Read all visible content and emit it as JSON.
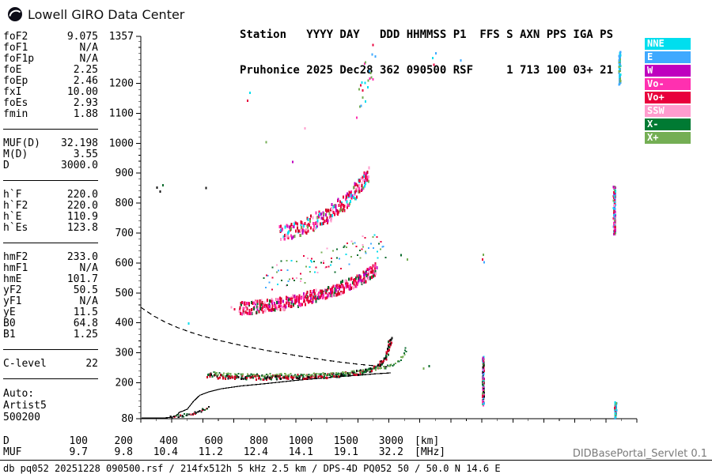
{
  "header": {
    "brand": "Lowell GIRO Data Center",
    "station_line1": "Station   YYYY DAY   DDD HHMMSS P1  FFS S AXN PPS IGA PS",
    "station_line2": "Pruhonice 2025 Dec28 362 090500 RSF     1 713 100 03+ 21"
  },
  "params": {
    "groups": [
      [
        {
          "label": "foF2",
          "value": "9.075"
        },
        {
          "label": "foF1",
          "value": "N/A"
        },
        {
          "label": "foF1p",
          "value": "N/A"
        },
        {
          "label": "foE",
          "value": "2.25"
        },
        {
          "label": "foEp",
          "value": "2.46"
        },
        {
          "label": "fxI",
          "value": "10.00"
        },
        {
          "label": "foEs",
          "value": "2.93"
        },
        {
          "label": "fmin",
          "value": "1.88"
        }
      ],
      [
        {
          "label": "MUF(D)",
          "value": "32.198"
        },
        {
          "label": "M(D)",
          "value": "3.55"
        },
        {
          "label": "D",
          "value": "3000.0"
        }
      ],
      [
        {
          "label": "h`F",
          "value": "220.0"
        },
        {
          "label": "h`F2",
          "value": "220.0"
        },
        {
          "label": "h`E",
          "value": "110.9"
        },
        {
          "label": "h`Es",
          "value": "123.8"
        }
      ],
      [
        {
          "label": "hmF2",
          "value": "233.0"
        },
        {
          "label": "hmF1",
          "value": "N/A"
        },
        {
          "label": "hmE",
          "value": "101.7"
        },
        {
          "label": "yF2",
          "value": "50.5"
        },
        {
          "label": "yF1",
          "value": "N/A"
        },
        {
          "label": "yE",
          "value": "11.5"
        },
        {
          "label": "B0",
          "value": "64.8"
        },
        {
          "label": "B1",
          "value": "1.25"
        }
      ]
    ],
    "c_level": {
      "label": "C-level",
      "value": "22"
    },
    "auto_lines": [
      "Auto:",
      "Artist5",
      "500200"
    ]
  },
  "legend": {
    "items": [
      {
        "label": "NNE",
        "color": "#00DEEE"
      },
      {
        "label": "E",
        "color": "#3FA9FF"
      },
      {
        "label": "W",
        "color": "#BF00BF"
      },
      {
        "label": "Vo-",
        "color": "#FF30B0"
      },
      {
        "label": "Vo+",
        "color": "#E8003C"
      },
      {
        "label": "SSW",
        "color": "#FF9CCE"
      },
      {
        "label": "X-",
        "color": "#007A33"
      },
      {
        "label": "X+",
        "color": "#74AE54"
      }
    ]
  },
  "chart_data": {
    "type": "scatter",
    "title": "Pruhonice ionogram 2025 Dec28 362 090500",
    "x_unit": "MHz",
    "y_unit": "km",
    "xlim": [
      1,
      17
    ],
    "ylim": [
      80,
      1357
    ],
    "xticks": [
      1,
      2,
      3,
      4,
      5,
      6,
      7,
      8,
      9,
      10,
      11,
      12,
      13,
      14,
      15,
      16,
      17
    ],
    "yticks": [
      80,
      200,
      300,
      400,
      500,
      600,
      700,
      800,
      900,
      1000,
      1100,
      1200,
      1357
    ],
    "grid": false,
    "curves": [
      {
        "name": "true-height-profile",
        "style": "solid",
        "color": "#000000",
        "points": [
          [
            1.02,
            83
          ],
          [
            1.8,
            83
          ],
          [
            2.0,
            85
          ],
          [
            2.12,
            89
          ],
          [
            2.2,
            96
          ],
          [
            2.25,
            102
          ],
          [
            2.32,
            104
          ],
          [
            2.5,
            112
          ],
          [
            2.7,
            138
          ],
          [
            2.9,
            158
          ],
          [
            3.2,
            170
          ],
          [
            3.6,
            180
          ],
          [
            4.2,
            189
          ],
          [
            5.0,
            197
          ],
          [
            6.0,
            208
          ],
          [
            7.0,
            217
          ],
          [
            8.0,
            225
          ],
          [
            8.6,
            230
          ],
          [
            9.07,
            233
          ]
        ]
      },
      {
        "name": "transmission-curve",
        "style": "dashed",
        "color": "#000000",
        "points": [
          [
            1.0,
            452
          ],
          [
            1.4,
            424
          ],
          [
            1.8,
            402
          ],
          [
            2.2,
            384
          ],
          [
            2.6,
            369
          ],
          [
            3.0,
            356
          ],
          [
            3.5,
            342
          ],
          [
            4.0,
            330
          ],
          [
            4.5,
            319
          ],
          [
            5.0,
            309
          ],
          [
            5.5,
            300
          ],
          [
            6.0,
            291
          ],
          [
            6.5,
            283
          ],
          [
            7.0,
            275
          ],
          [
            7.5,
            268
          ],
          [
            8.0,
            262
          ],
          [
            8.5,
            257
          ],
          [
            8.95,
            253
          ]
        ]
      }
    ],
    "scatter_series": [
      {
        "name": "f-trace-ordinary",
        "points": [
          [
            3.15,
            224
          ],
          [
            3.6,
            220
          ],
          [
            4.2,
            218
          ],
          [
            5.0,
            217
          ],
          [
            5.8,
            218
          ],
          [
            6.6,
            221
          ],
          [
            7.2,
            224
          ],
          [
            7.8,
            229
          ],
          [
            8.25,
            237
          ],
          [
            8.55,
            249
          ],
          [
            8.78,
            266
          ],
          [
            8.92,
            290
          ],
          [
            9.0,
            316
          ],
          [
            9.06,
            350
          ]
        ],
        "n": 270,
        "fjitter": 0.1,
        "hjitter": 14,
        "dot": [
          2,
          3
        ],
        "colors": [
          "#cc0022",
          "#cc0022",
          "#111111",
          "#0a6b2d",
          "#cc0022",
          "#111111"
        ]
      },
      {
        "name": "f-trace-extraordinary",
        "points": [
          [
            3.35,
            231
          ],
          [
            4.0,
            227
          ],
          [
            5.0,
            225
          ],
          [
            6.0,
            226
          ],
          [
            7.0,
            229
          ],
          [
            7.8,
            234
          ],
          [
            8.4,
            242
          ],
          [
            8.9,
            251
          ],
          [
            9.2,
            261
          ],
          [
            9.42,
            281
          ],
          [
            9.56,
            312
          ]
        ],
        "n": 150,
        "fjitter": 0.09,
        "hjitter": 10,
        "dot": [
          2,
          2
        ],
        "colors": [
          "#74AE54",
          "#0a6b2d",
          "#74AE54"
        ]
      },
      {
        "name": "second-hop-trace",
        "points": [
          [
            4.18,
            449
          ],
          [
            4.6,
            451
          ],
          [
            5.0,
            456
          ],
          [
            5.5,
            463
          ],
          [
            6.0,
            473
          ],
          [
            6.5,
            486
          ],
          [
            7.0,
            501
          ],
          [
            7.5,
            519
          ],
          [
            8.0,
            541
          ],
          [
            8.35,
            561
          ],
          [
            8.6,
            583
          ]
        ],
        "n": 430,
        "fjitter": 0.08,
        "hjitter": 40,
        "dot": [
          2,
          4
        ],
        "colors": [
          "#E8003C",
          "#E8003C",
          "#FF30B0",
          "#cc0022",
          "#BF00BF",
          "#FF9CCE",
          "#E8003C",
          "#0a6b2d"
        ]
      },
      {
        "name": "second-hop-halo",
        "points": [
          [
            5.0,
            545
          ],
          [
            5.8,
            565
          ],
          [
            6.5,
            592
          ],
          [
            7.2,
            615
          ],
          [
            7.9,
            636
          ],
          [
            8.5,
            655
          ],
          [
            8.9,
            640
          ]
        ],
        "n": 95,
        "fjitter": 0.16,
        "hjitter": 100,
        "dot": [
          2,
          2
        ],
        "colors": [
          "#00DEEE",
          "#74AE54",
          "#3FA9FF",
          "#0a6b2d",
          "#FF9CCE",
          "#E8003C"
        ]
      },
      {
        "name": "third-hop-trace",
        "points": [
          [
            5.5,
            697
          ],
          [
            6.0,
            712
          ],
          [
            6.5,
            733
          ],
          [
            7.0,
            759
          ],
          [
            7.4,
            789
          ],
          [
            7.8,
            823
          ],
          [
            8.1,
            858
          ],
          [
            8.35,
            896
          ]
        ],
        "n": 240,
        "fjitter": 0.1,
        "hjitter": 52,
        "dot": [
          2,
          4
        ],
        "colors": [
          "#E8003C",
          "#FF30B0",
          "#FF9CCE",
          "#cc0022",
          "#74AE54",
          "#00DEEE",
          "#BF00BF",
          "#E8003C"
        ]
      },
      {
        "name": "fourth-hop-specks",
        "points": [
          [
            8.0,
            1145
          ],
          [
            8.2,
            1205
          ],
          [
            8.4,
            1255
          ],
          [
            8.55,
            1285
          ]
        ],
        "n": 22,
        "fjitter": 0.14,
        "hjitter": 120,
        "dot": [
          2,
          3
        ],
        "colors": [
          "#00DEEE",
          "#FF30B0",
          "#E8003C",
          "#74AE54",
          "#3FA9FF"
        ]
      },
      {
        "name": "rfi-strip-12mhz",
        "points": [
          [
            12.05,
            128
          ],
          [
            12.05,
            285
          ]
        ],
        "n": 130,
        "fjitter": 0.05,
        "hjitter": 6,
        "dot": [
          2,
          3
        ],
        "colors": [
          "#E8003C",
          "#3FA9FF",
          "#74AE54",
          "#BF00BF",
          "#00DEEE",
          "#111111",
          "#FF30B0",
          "#0a6b2d"
        ]
      },
      {
        "name": "rfi-strip-16mhz-mid",
        "points": [
          [
            16.28,
            695
          ],
          [
            16.28,
            855
          ]
        ],
        "n": 115,
        "fjitter": 0.06,
        "hjitter": 6,
        "dot": [
          2,
          3
        ],
        "colors": [
          "#E8003C",
          "#3FA9FF",
          "#74AE54",
          "#00DEEE",
          "#FF30B0",
          "#BF00BF",
          "#FF9CCE"
        ]
      },
      {
        "name": "rfi-strip-16mhz-low",
        "points": [
          [
            16.32,
            82
          ],
          [
            16.32,
            135
          ]
        ],
        "n": 50,
        "fjitter": 0.06,
        "hjitter": 5,
        "dot": [
          2,
          3
        ],
        "colors": [
          "#00DEEE",
          "#3FA9FF",
          "#00DEEE",
          "#74AE54",
          "#E8003C"
        ]
      },
      {
        "name": "rfi-strip-16mhz-top",
        "points": [
          [
            16.45,
            1195
          ],
          [
            16.45,
            1305
          ]
        ],
        "n": 55,
        "fjitter": 0.05,
        "hjitter": 5,
        "dot": [
          2,
          3
        ],
        "colors": [
          "#3FA9FF",
          "#00DEEE",
          "#3FA9FF",
          "#74AE54"
        ]
      },
      {
        "name": "e-layer-trace",
        "points": [
          [
            1.95,
            85
          ],
          [
            2.2,
            88
          ],
          [
            2.5,
            93
          ],
          [
            2.75,
            100
          ],
          [
            2.95,
            108
          ],
          [
            3.2,
            118
          ]
        ],
        "n": 45,
        "fjitter": 0.07,
        "hjitter": 8,
        "dot": [
          2,
          2
        ],
        "colors": [
          "#111111",
          "#0a6b2d",
          "#cc0022",
          "#111111"
        ]
      }
    ],
    "noise_points": [
      [
        1.52,
        852,
        "#111111"
      ],
      [
        1.62,
        838,
        "#111111"
      ],
      [
        1.72,
        860,
        "#0a6b2d"
      ],
      [
        3.1,
        850,
        "#111111"
      ],
      [
        2.55,
        398,
        "#00DEEE"
      ],
      [
        4.45,
        1142,
        "#E8003C"
      ],
      [
        4.52,
        1168,
        "#00DEEE"
      ],
      [
        5.05,
        1003,
        "#74AE54"
      ],
      [
        5.9,
        938,
        "#BF00BF"
      ],
      [
        9.4,
        626,
        "#0a6b2d"
      ],
      [
        9.6,
        611,
        "#74AE54"
      ],
      [
        10.12,
        247,
        "#74AE54"
      ],
      [
        10.3,
        255,
        "#0a6b2d"
      ],
      [
        10.42,
        1285,
        "#00DEEE"
      ],
      [
        10.52,
        1300,
        "#3FA9FF"
      ],
      [
        10.46,
        1262,
        "#E8003C"
      ],
      [
        11.32,
        1276,
        "#3FA9FF"
      ],
      [
        12.02,
        612,
        "#E8003C"
      ],
      [
        12.08,
        603,
        "#3FA9FF"
      ],
      [
        12.05,
        628,
        "#74AE54"
      ],
      [
        3.92,
        452,
        "#FF9CCE"
      ],
      [
        4.02,
        446,
        "#E8003C"
      ],
      [
        6.3,
        1050,
        "#FF9CCE"
      ]
    ]
  },
  "footer": {
    "d_row": {
      "label": "D",
      "values": [
        "100",
        "200",
        "400",
        "600",
        "800",
        "1000",
        "1500",
        "3000"
      ],
      "unit": "[km]"
    },
    "muf_row": {
      "label": "MUF",
      "values": [
        "9.7",
        "9.8",
        "10.4",
        "11.2",
        "12.4",
        "14.1",
        "19.1",
        "32.2"
      ],
      "unit": "[MHz]"
    },
    "status": "db pq052 20251228 090500.rsf / 214fx512h 5 kHz 2.5 km / DPS-4D PQ052 50 / 50.0 N 14.6 E",
    "servlet": "DIDBasePortal_Servlet 0.1"
  }
}
